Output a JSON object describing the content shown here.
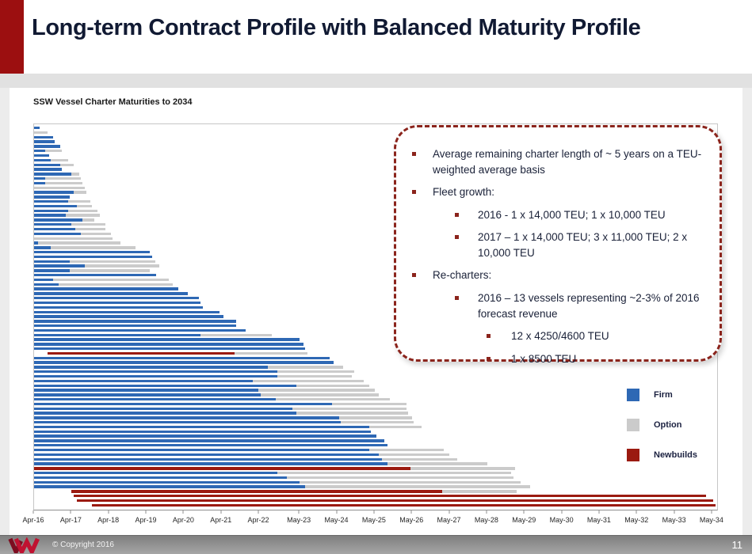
{
  "slide": {
    "title": "Long-term Contract Profile with Balanced Maturity Profile"
  },
  "callout": {
    "bullets": [
      {
        "level": 1,
        "text": "Average remaining charter length of ~ 5 years on a TEU-weighted average basis"
      },
      {
        "level": 1,
        "text": "Fleet growth:"
      },
      {
        "level": 2,
        "text": "2016 - 1 x 14,000 TEU; 1 x 10,000 TEU"
      },
      {
        "level": 2,
        "text": "2017 – 1 x 14,000 TEU; 3 x 11,000 TEU; 2 x 10,000 TEU"
      },
      {
        "level": 1,
        "text": "Re-charters:"
      },
      {
        "level": 2,
        "text": "2016 – 13 vessels representing ~2-3% of 2016 forecast revenue"
      },
      {
        "level": 3,
        "text": "12 x 4250/4600 TEU"
      },
      {
        "level": 3,
        "text": "1 x 8500 TEU"
      }
    ]
  },
  "chart_data": {
    "type": "bar",
    "subtype": "horizontal-gantt-maturity",
    "title": "SSW Vessel Charter Maturities to 2034",
    "xlabel": "",
    "ylabel": "",
    "grid": false,
    "axis": {
      "x_min": 2016.25,
      "x_max": 2034.5,
      "ticks": [
        {
          "label": "Apr-16",
          "year": 2016.25
        },
        {
          "label": "Apr-17",
          "year": 2017.25
        },
        {
          "label": "Apr-18",
          "year": 2018.25
        },
        {
          "label": "Apr-19",
          "year": 2019.25
        },
        {
          "label": "Apr-20",
          "year": 2020.25
        },
        {
          "label": "Apr-21",
          "year": 2021.25
        },
        {
          "label": "Apr-22",
          "year": 2022.25
        },
        {
          "label": "May-23",
          "year": 2023.33
        },
        {
          "label": "May-24",
          "year": 2024.33
        },
        {
          "label": "May-25",
          "year": 2025.33
        },
        {
          "label": "May-26",
          "year": 2026.33
        },
        {
          "label": "May-27",
          "year": 2027.33
        },
        {
          "label": "May-28",
          "year": 2028.33
        },
        {
          "label": "May-29",
          "year": 2029.33
        },
        {
          "label": "May-30",
          "year": 2030.33
        },
        {
          "label": "May-31",
          "year": 2031.33
        },
        {
          "label": "May-32",
          "year": 2032.33
        },
        {
          "label": "May-33",
          "year": 2033.33
        },
        {
          "label": "May-34",
          "year": 2034.33
        }
      ]
    },
    "legend": {
      "position": "bottom-right",
      "items": [
        {
          "label": "Firm",
          "type": "firm",
          "color": "#2e68b4"
        },
        {
          "label": "Option",
          "type": "option",
          "color": "#cbcbcb"
        },
        {
          "label": "Newbuilds",
          "type": "newbuild",
          "color": "#9b1a10"
        }
      ]
    },
    "rows_format": "each row is a list of segments [type, start_year, end_year]; one row per vessel charter (values estimated from pixels)",
    "rows": [
      [
        [
          "firm",
          2016.25,
          2016.4
        ]
      ],
      [
        [
          "option",
          2016.25,
          2016.6
        ]
      ],
      [
        [
          "firm",
          2016.25,
          2016.75
        ]
      ],
      [
        [
          "firm",
          2016.25,
          2016.8
        ]
      ],
      [
        [
          "firm",
          2016.25,
          2016.95
        ]
      ],
      [
        [
          "firm",
          2016.25,
          2016.55
        ],
        [
          "option",
          2016.55,
          2017.0
        ]
      ],
      [
        [
          "firm",
          2016.25,
          2016.65
        ]
      ],
      [
        [
          "firm",
          2016.25,
          2016.7
        ],
        [
          "option",
          2016.7,
          2017.15
        ]
      ],
      [
        [
          "firm",
          2016.25,
          2016.95
        ],
        [
          "option",
          2016.95,
          2017.3
        ]
      ],
      [
        [
          "firm",
          2016.25,
          2017.0
        ]
      ],
      [
        [
          "firm",
          2016.25,
          2017.25
        ],
        [
          "option",
          2017.25,
          2017.45
        ]
      ],
      [
        [
          "firm",
          2016.25,
          2016.55
        ],
        [
          "option",
          2016.55,
          2017.5
        ]
      ],
      [
        [
          "firm",
          2016.25,
          2016.55
        ],
        [
          "option",
          2016.55,
          2017.55
        ]
      ],
      [
        [
          "option",
          2016.25,
          2017.6
        ]
      ],
      [
        [
          "firm",
          2016.25,
          2017.3
        ],
        [
          "option",
          2017.3,
          2017.65
        ]
      ],
      [
        [
          "firm",
          2016.25,
          2017.2
        ]
      ],
      [
        [
          "firm",
          2016.25,
          2017.15
        ],
        [
          "option",
          2017.15,
          2017.75
        ]
      ],
      [
        [
          "firm",
          2016.25,
          2017.4
        ],
        [
          "option",
          2017.4,
          2017.8
        ]
      ],
      [
        [
          "firm",
          2016.25,
          2017.15
        ],
        [
          "option",
          2017.15,
          2017.95
        ]
      ],
      [
        [
          "firm",
          2016.25,
          2017.1
        ],
        [
          "option",
          2017.1,
          2018.0
        ]
      ],
      [
        [
          "firm",
          2016.25,
          2017.55
        ],
        [
          "option",
          2017.55,
          2017.85
        ]
      ],
      [
        [
          "firm",
          2016.25,
          2017.25
        ],
        [
          "option",
          2017.25,
          2018.15
        ]
      ],
      [
        [
          "firm",
          2016.25,
          2017.35
        ],
        [
          "option",
          2017.35,
          2018.15
        ]
      ],
      [
        [
          "firm",
          2016.25,
          2017.5
        ],
        [
          "option",
          2017.5,
          2018.3
        ]
      ],
      [
        [
          "option",
          2016.25,
          2018.35
        ]
      ],
      [
        [
          "firm",
          2016.25,
          2016.35
        ],
        [
          "option",
          2016.35,
          2018.55
        ]
      ],
      [
        [
          "firm",
          2016.25,
          2016.7
        ],
        [
          "option",
          2016.7,
          2018.95
        ]
      ],
      [
        [
          "firm",
          2016.25,
          2019.35
        ]
      ],
      [
        [
          "firm",
          2016.25,
          2019.4
        ]
      ],
      [
        [
          "firm",
          2016.25,
          2017.2
        ],
        [
          "option",
          2017.2,
          2019.5
        ]
      ],
      [
        [
          "firm",
          2016.25,
          2017.6
        ],
        [
          "option",
          2017.6,
          2019.6
        ]
      ],
      [
        [
          "firm",
          2016.25,
          2017.2
        ],
        [
          "option",
          2017.2,
          2019.35
        ]
      ],
      [
        [
          "firm",
          2016.25,
          2019.5
        ]
      ],
      [
        [
          "firm",
          2016.25,
          2016.75
        ],
        [
          "option",
          2016.75,
          2019.85
        ]
      ],
      [
        [
          "firm",
          2016.25,
          2016.9
        ],
        [
          "option",
          2016.9,
          2019.95
        ]
      ],
      [
        [
          "firm",
          2016.25,
          2020.1
        ]
      ],
      [
        [
          "firm",
          2016.25,
          2020.35
        ]
      ],
      [
        [
          "firm",
          2016.25,
          2020.65
        ]
      ],
      [
        [
          "firm",
          2016.25,
          2020.7
        ]
      ],
      [
        [
          "firm",
          2016.25,
          2020.75
        ]
      ],
      [
        [
          "firm",
          2016.25,
          2021.2
        ]
      ],
      [
        [
          "firm",
          2016.25,
          2021.3
        ]
      ],
      [
        [
          "firm",
          2016.25,
          2021.65
        ]
      ],
      [
        [
          "firm",
          2016.25,
          2021.65
        ]
      ],
      [
        [
          "firm",
          2016.25,
          2021.9
        ]
      ],
      [
        [
          "firm",
          2016.25,
          2020.7
        ],
        [
          "option",
          2020.7,
          2022.6
        ]
      ],
      [
        [
          "firm",
          2016.25,
          2023.35
        ]
      ],
      [
        [
          "firm",
          2016.25,
          2023.45
        ]
      ],
      [
        [
          "firm",
          2016.25,
          2023.5
        ]
      ],
      [
        [
          "newbuild",
          2016.6,
          2021.6
        ],
        [
          "option",
          2021.6,
          2023.55
        ]
      ],
      [
        [
          "firm",
          2016.25,
          2024.15
        ]
      ],
      [
        [
          "firm",
          2016.25,
          2024.25
        ]
      ],
      [
        [
          "firm",
          2016.25,
          2022.5
        ],
        [
          "option",
          2022.5,
          2024.5
        ]
      ],
      [
        [
          "firm",
          2016.25,
          2022.75
        ],
        [
          "option",
          2022.75,
          2024.8
        ]
      ],
      [
        [
          "firm",
          2016.25,
          2022.75
        ],
        [
          "option",
          2022.75,
          2024.75
        ]
      ],
      [
        [
          "firm",
          2016.25,
          2022.1
        ],
        [
          "option",
          2022.1,
          2025.05
        ]
      ],
      [
        [
          "firm",
          2016.25,
          2023.25
        ],
        [
          "option",
          2023.25,
          2025.2
        ]
      ],
      [
        [
          "firm",
          2016.25,
          2022.25
        ],
        [
          "option",
          2022.25,
          2025.35
        ]
      ],
      [
        [
          "firm",
          2016.25,
          2022.3
        ],
        [
          "option",
          2022.3,
          2025.45
        ]
      ],
      [
        [
          "firm",
          2016.25,
          2022.7
        ],
        [
          "option",
          2022.7,
          2025.75
        ]
      ],
      [
        [
          "firm",
          2016.25,
          2024.2
        ],
        [
          "option",
          2024.2,
          2026.2
        ]
      ],
      [
        [
          "firm",
          2016.25,
          2023.15
        ],
        [
          "option",
          2023.15,
          2026.2
        ]
      ],
      [
        [
          "firm",
          2016.25,
          2023.25
        ],
        [
          "option",
          2023.25,
          2026.25
        ]
      ],
      [
        [
          "firm",
          2016.25,
          2024.4
        ],
        [
          "option",
          2024.4,
          2026.35
        ]
      ],
      [
        [
          "firm",
          2016.25,
          2024.45
        ],
        [
          "option",
          2024.45,
          2026.4
        ]
      ],
      [
        [
          "firm",
          2016.25,
          2025.2
        ],
        [
          "option",
          2025.2,
          2026.6
        ]
      ],
      [
        [
          "firm",
          2016.25,
          2025.25
        ]
      ],
      [
        [
          "firm",
          2016.25,
          2025.4
        ]
      ],
      [
        [
          "firm",
          2016.25,
          2025.6
        ]
      ],
      [
        [
          "firm",
          2016.25,
          2025.7
        ]
      ],
      [
        [
          "firm",
          2016.25,
          2025.2
        ],
        [
          "option",
          2025.2,
          2027.2
        ]
      ],
      [
        [
          "firm",
          2016.25,
          2025.45
        ],
        [
          "option",
          2025.45,
          2027.35
        ]
      ],
      [
        [
          "firm",
          2016.25,
          2025.55
        ],
        [
          "option",
          2025.55,
          2027.55
        ]
      ],
      [
        [
          "firm",
          2016.25,
          2025.7
        ],
        [
          "option",
          2025.7,
          2028.35
        ]
      ],
      [
        [
          "newbuild",
          2016.25,
          2026.3
        ],
        [
          "option",
          2026.3,
          2029.1
        ]
      ],
      [
        [
          "firm",
          2016.25,
          2022.75
        ],
        [
          "option",
          2022.75,
          2029.0
        ]
      ],
      [
        [
          "firm",
          2016.25,
          2023.0
        ],
        [
          "option",
          2023.0,
          2029.05
        ]
      ],
      [
        [
          "firm",
          2016.25,
          2023.35
        ],
        [
          "option",
          2023.35,
          2029.25
        ]
      ],
      [
        [
          "firm",
          2016.25,
          2023.5
        ],
        [
          "option",
          2023.5,
          2029.5
        ]
      ],
      [
        [
          "newbuild",
          2017.25,
          2027.15
        ],
        [
          "option",
          2027.15,
          2029.15
        ]
      ],
      [
        [
          "newbuild",
          2017.3,
          2034.2
        ]
      ],
      [
        [
          "newbuild",
          2017.4,
          2034.4
        ]
      ],
      [
        [
          "newbuild",
          2017.8,
          2034.45
        ]
      ]
    ]
  },
  "footer": {
    "copyright": "© Copyright 2016",
    "page_number": "11",
    "logo": "company-w-logo"
  },
  "colors": {
    "accent_red": "#9c0f10",
    "title_text": "#111a33",
    "firm": "#2e68b4",
    "option": "#cbcbcb",
    "newbuild": "#9b1a10",
    "callout_border": "#8b241c",
    "callout_text": "#1a2138",
    "footer_bg": "#8f8f8f"
  }
}
